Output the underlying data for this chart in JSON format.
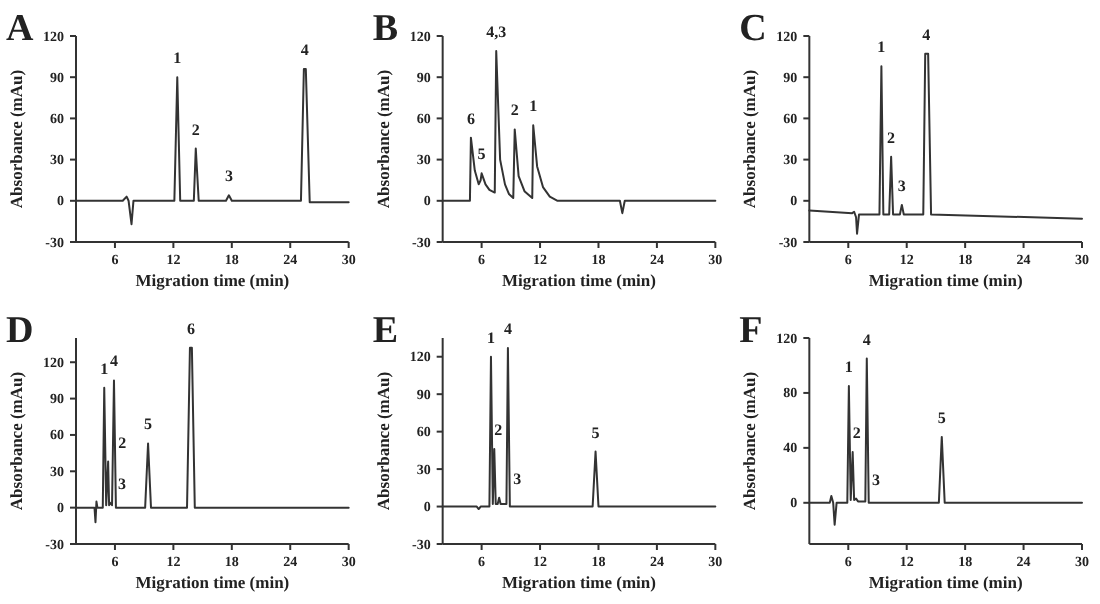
{
  "chart_data": [
    {
      "type": "line",
      "title": "A",
      "xlabel": "Migration time (min)",
      "ylabel": "Absorbance (mAu)",
      "xlim": [
        2,
        30
      ],
      "xticks": [
        6,
        12,
        18,
        24,
        30
      ],
      "ylim": [
        -30,
        120
      ],
      "yticks": [
        -30,
        0,
        30,
        60,
        90,
        120
      ],
      "series": [
        {
          "color": "#333333",
          "x": [
            2,
            6.8,
            7.2,
            7.4,
            7.7,
            7.9,
            12.1,
            12.4,
            12.7,
            14.1,
            14.3,
            14.6,
            17.4,
            17.7,
            18.0,
            25.1,
            25.4,
            25.6,
            26.0,
            30
          ],
          "values": [
            0,
            0,
            3,
            0,
            -17,
            0,
            0,
            90,
            0,
            0,
            38,
            0,
            0,
            4,
            0,
            0,
            96,
            96,
            -1,
            -1
          ]
        }
      ],
      "annotations": [
        {
          "text": "1",
          "x": 12.4,
          "y": 90
        },
        {
          "text": "2",
          "x": 14.3,
          "y": 38
        },
        {
          "text": "3",
          "x": 17.7,
          "y": 4
        },
        {
          "text": "4",
          "x": 25.5,
          "y": 96
        }
      ]
    },
    {
      "type": "line",
      "title": "B",
      "xlabel": "Migration time (min)",
      "ylabel": "Absorbance (mAu)",
      "xlim": [
        2,
        30
      ],
      "xticks": [
        6,
        12,
        18,
        24,
        30
      ],
      "ylim": [
        -30,
        120
      ],
      "yticks": [
        -30,
        0,
        30,
        60,
        90,
        120
      ],
      "series": [
        {
          "color": "#333333",
          "x": [
            2,
            4.8,
            4.9,
            5.3,
            5.7,
            5.9,
            6.0,
            6.4,
            6.8,
            7.35,
            7.5,
            7.9,
            8.4,
            8.8,
            9.25,
            9.4,
            9.8,
            10.4,
            11.2,
            11.3,
            11.7,
            12.3,
            13,
            13.8,
            20.2,
            20.45,
            20.7,
            30
          ],
          "values": [
            0,
            0,
            46,
            22,
            12,
            15,
            20,
            12,
            8,
            6,
            109,
            30,
            12,
            5,
            2,
            52,
            18,
            7,
            2,
            55,
            25,
            10,
            3,
            0,
            0,
            -9,
            0,
            0
          ]
        }
      ],
      "annotations": [
        {
          "text": "6",
          "x": 4.9,
          "y": 46
        },
        {
          "text": "5",
          "x": 6.0,
          "y": 20
        },
        {
          "text": "4,3",
          "x": 7.5,
          "y": 109
        },
        {
          "text": "2",
          "x": 9.4,
          "y": 52
        },
        {
          "text": "1",
          "x": 11.3,
          "y": 55
        }
      ]
    },
    {
      "type": "line",
      "title": "C",
      "xlabel": "Migration time (min)",
      "ylabel": "Absorbance (mAu)",
      "xlim": [
        2,
        30
      ],
      "xticks": [
        6,
        12,
        18,
        24,
        30
      ],
      "ylim": [
        -30,
        120
      ],
      "yticks": [
        -30,
        0,
        30,
        60,
        90,
        120
      ],
      "series": [
        {
          "color": "#333333",
          "x": [
            2,
            6.4,
            6.6,
            6.8,
            6.9,
            7.1,
            7.3,
            9.2,
            9.4,
            9.6,
            10.2,
            10.4,
            10.6,
            11.3,
            11.5,
            11.7,
            13.7,
            13.9,
            14.2,
            14.5,
            30
          ],
          "values": [
            -7,
            -9,
            -8,
            -12,
            -24,
            -10,
            -10,
            -10,
            98,
            -10,
            -10,
            32,
            -10,
            -10,
            -3,
            -10,
            -10,
            107,
            107,
            -10,
            -13
          ]
        }
      ],
      "annotations": [
        {
          "text": "1",
          "x": 9.4,
          "y": 98
        },
        {
          "text": "2",
          "x": 10.4,
          "y": 32
        },
        {
          "text": "3",
          "x": 11.5,
          "y": -3
        },
        {
          "text": "4",
          "x": 14.0,
          "y": 107
        }
      ]
    },
    {
      "type": "line",
      "title": "D",
      "xlabel": "Migration time (min)",
      "ylabel": "Absorbance (mAu)",
      "xlim": [
        2,
        30
      ],
      "xticks": [
        6,
        12,
        18,
        24,
        30
      ],
      "ylim": [
        -30,
        140
      ],
      "yticks": [
        -30,
        0,
        30,
        60,
        90,
        120
      ],
      "series": [
        {
          "color": "#333333",
          "x": [
            2,
            3.9,
            4.0,
            4.1,
            4.2,
            4.75,
            4.9,
            5.1,
            5.3,
            5.4,
            5.5,
            5.7,
            5.9,
            6.1,
            9.1,
            9.4,
            9.7,
            13.4,
            13.7,
            13.9,
            14.2,
            30
          ],
          "values": [
            0,
            0,
            -12,
            5,
            0,
            0,
            99,
            2,
            38,
            2,
            4,
            2,
            105,
            0,
            0,
            53,
            0,
            0,
            132,
            132,
            0,
            0
          ]
        }
      ],
      "annotations": [
        {
          "text": "1",
          "x": 4.9,
          "y": 99
        },
        {
          "text": "2",
          "x": 5.3,
          "y": 38
        },
        {
          "text": "3",
          "x": 5.5,
          "y": 4
        },
        {
          "text": "4",
          "x": 5.9,
          "y": 105
        },
        {
          "text": "5",
          "x": 9.4,
          "y": 53
        },
        {
          "text": "6",
          "x": 13.8,
          "y": 132
        }
      ]
    },
    {
      "type": "line",
      "title": "E",
      "xlabel": "Migration time (min)",
      "ylabel": "Absorbance (mAu)",
      "xlim": [
        2,
        30
      ],
      "xticks": [
        6,
        12,
        18,
        24,
        30
      ],
      "ylim": [
        -30,
        135
      ],
      "yticks": [
        -30,
        0,
        30,
        60,
        90,
        120
      ],
      "series": [
        {
          "color": "#333333",
          "x": [
            2,
            5.5,
            5.7,
            5.9,
            6.8,
            6.96,
            7.15,
            7.3,
            7.45,
            7.65,
            7.8,
            7.95,
            8.55,
            8.7,
            8.9,
            17.4,
            17.7,
            18.0,
            30
          ],
          "values": [
            0,
            0,
            -2,
            0,
            0,
            120,
            2,
            46,
            2,
            2,
            7,
            2,
            2,
            127,
            0,
            0,
            44,
            0,
            0
          ]
        }
      ],
      "annotations": [
        {
          "text": "1",
          "x": 6.96,
          "y": 120
        },
        {
          "text": "2",
          "x": 7.3,
          "y": 46
        },
        {
          "text": "3",
          "x": 7.8,
          "y": 7
        },
        {
          "text": "4",
          "x": 8.7,
          "y": 127
        },
        {
          "text": "5",
          "x": 17.7,
          "y": 44
        }
      ]
    },
    {
      "type": "line",
      "title": "F",
      "xlabel": "Migration time (min)",
      "ylabel": "Absorbance (mAu)",
      "xlim": [
        2,
        30
      ],
      "xticks": [
        6,
        12,
        18,
        24,
        30
      ],
      "ylim": [
        -30,
        120
      ],
      "yticks": [
        0,
        40,
        80,
        120
      ],
      "series": [
        {
          "color": "#333333",
          "x": [
            2,
            4.1,
            4.26,
            4.45,
            4.6,
            4.8,
            5.9,
            6.06,
            6.25,
            6.45,
            6.6,
            6.8,
            7.0,
            7.75,
            7.9,
            8.1,
            15.3,
            15.6,
            15.9,
            30
          ],
          "values": [
            0,
            0,
            5,
            0,
            -16,
            0,
            0,
            85,
            2,
            37,
            2,
            3,
            1,
            1,
            105,
            0,
            0,
            48,
            0,
            0
          ]
        }
      ],
      "annotations": [
        {
          "text": "1",
          "x": 6.06,
          "y": 85
        },
        {
          "text": "2",
          "x": 6.45,
          "y": 37
        },
        {
          "text": "3",
          "x": 6.8,
          "y": 3
        },
        {
          "text": "4",
          "x": 7.9,
          "y": 105
        },
        {
          "text": "5",
          "x": 15.6,
          "y": 48
        }
      ]
    }
  ]
}
